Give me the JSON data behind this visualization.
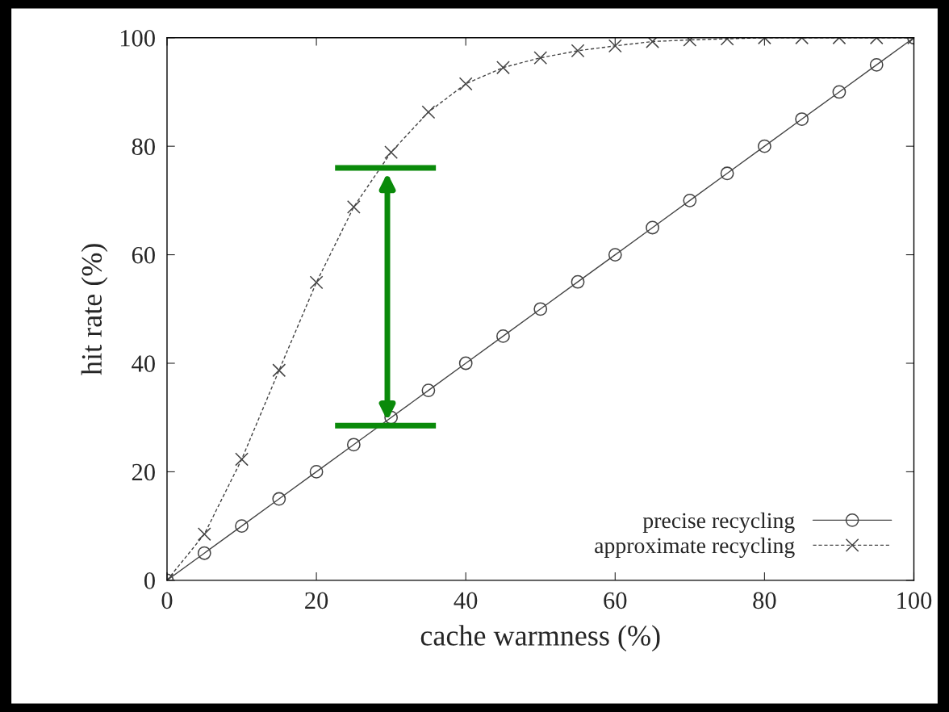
{
  "chart_data": {
    "type": "line",
    "xlabel": "cache warmness (%)",
    "ylabel": "hit rate (%)",
    "x": [
      0,
      5,
      10,
      15,
      20,
      25,
      30,
      35,
      40,
      45,
      50,
      55,
      60,
      65,
      70,
      75,
      80,
      85,
      90,
      95,
      100
    ],
    "series": [
      {
        "name": "precise recycling",
        "color": "#444444",
        "marker": "circle",
        "line_style": "solid",
        "values": [
          0,
          5,
          10,
          15,
          20,
          25,
          30,
          35,
          40,
          45,
          50,
          55,
          60,
          65,
          70,
          75,
          80,
          85,
          90,
          95,
          100
        ]
      },
      {
        "name": "approximate recycling",
        "color": "#444444",
        "marker": "cross",
        "line_style": "dashed",
        "values": [
          0,
          8.5,
          22.3,
          38.7,
          54.9,
          68.8,
          78.9,
          86.3,
          91.5,
          94.5,
          96.3,
          97.6,
          98.5,
          99.3,
          99.6,
          99.8,
          100,
          100,
          100,
          100,
          100
        ]
      }
    ],
    "xlim": [
      0,
      100
    ],
    "ylim": [
      0,
      100
    ],
    "xticks": [
      0,
      20,
      40,
      60,
      80,
      100
    ],
    "yticks": [
      0,
      20,
      40,
      60,
      80,
      100
    ],
    "grid": false,
    "legend": "bottom right"
  }
}
